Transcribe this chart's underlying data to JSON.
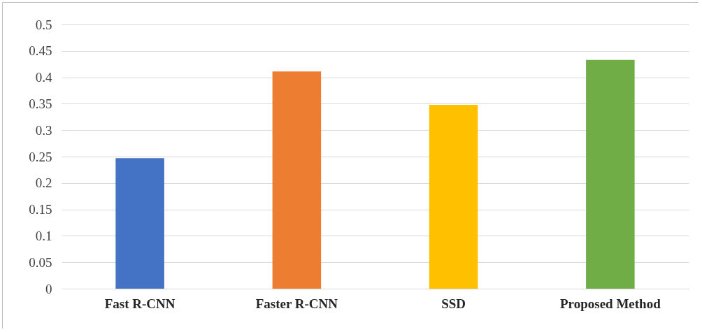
{
  "chart_data": {
    "type": "bar",
    "categories": [
      "Fast R-CNN",
      "Faster R-CNN",
      "SSD",
      "Proposed Method"
    ],
    "values": [
      0.247,
      0.411,
      0.348,
      0.433
    ],
    "colors": [
      "#4472c4",
      "#ed7d31",
      "#ffc000",
      "#70ad47"
    ],
    "ylim": [
      0,
      0.5
    ],
    "yticks": [
      0,
      0.05,
      0.1,
      0.15,
      0.2,
      0.25,
      0.3,
      0.35,
      0.4,
      0.45,
      0.5
    ],
    "grid": "y"
  }
}
